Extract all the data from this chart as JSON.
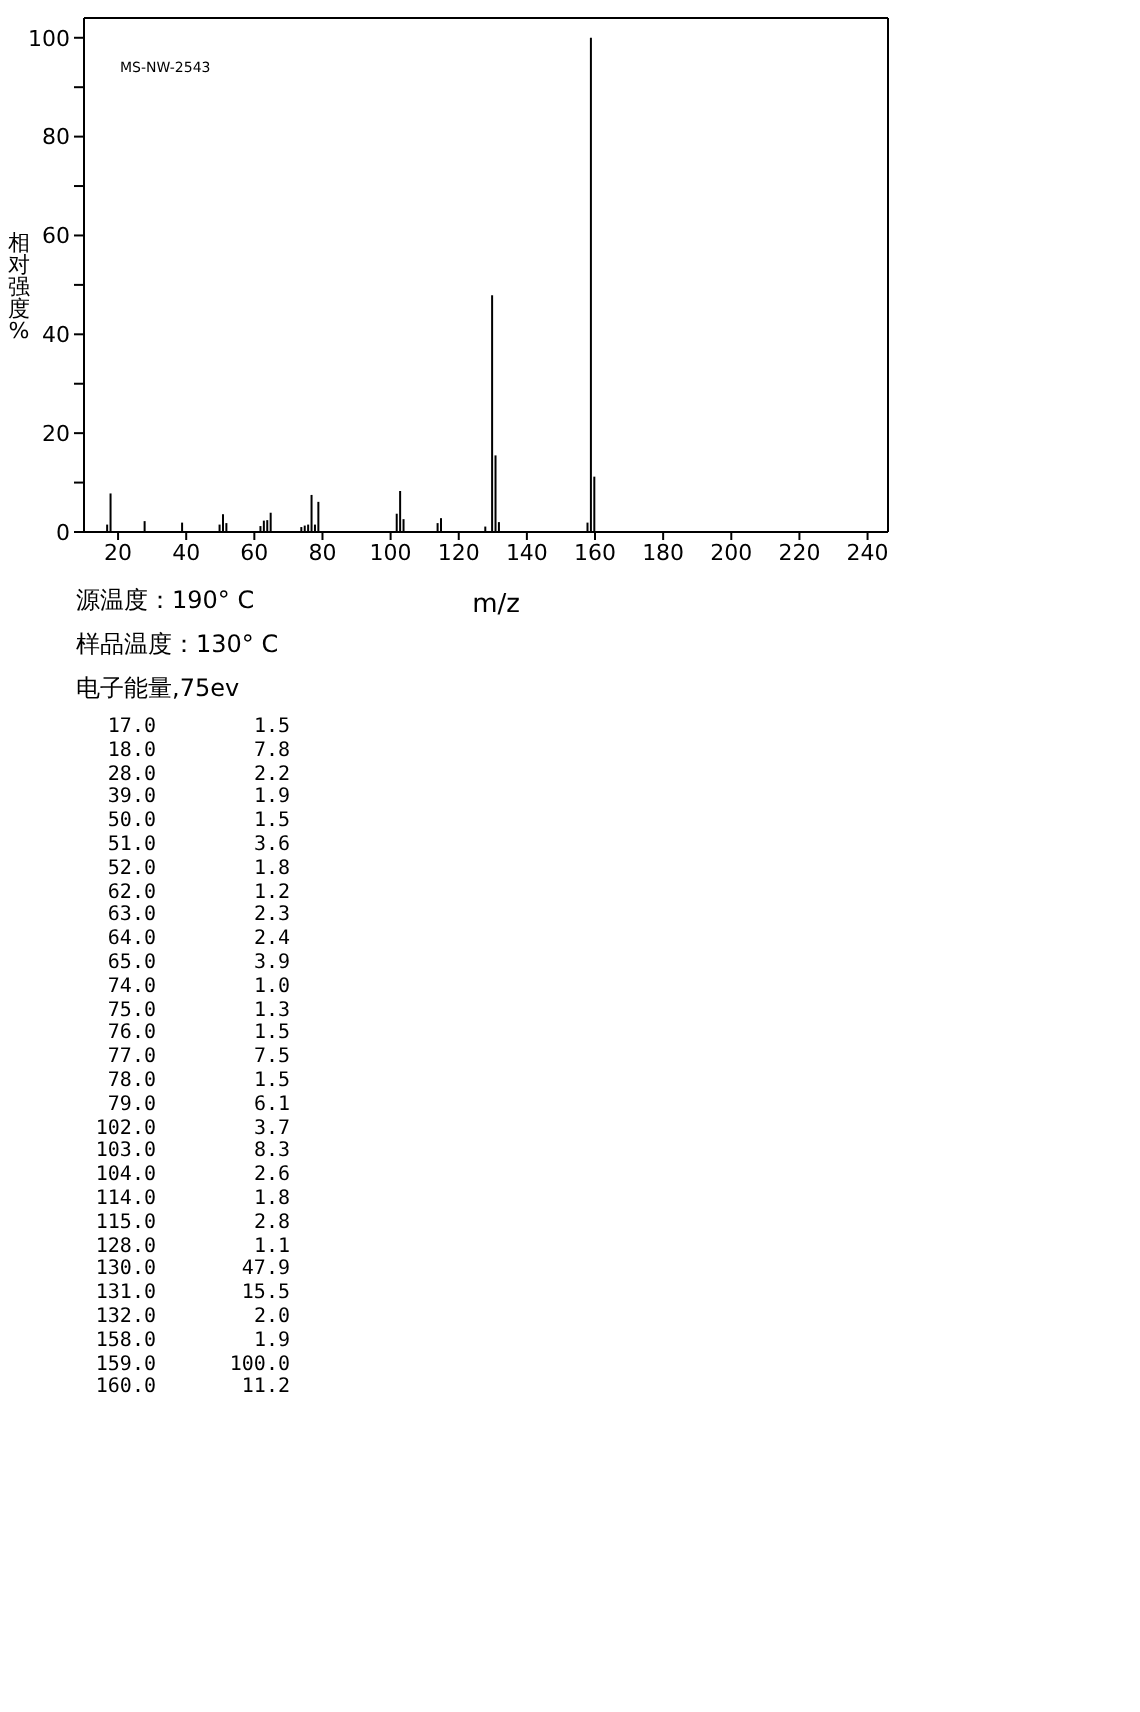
{
  "chart_data": [
    {
      "type": "bar",
      "title": "MS-NW-2543",
      "xlabel": "m/z",
      "ylabel": "相对强度%",
      "x": [
        17,
        18,
        28,
        39,
        50,
        51,
        52,
        62,
        63,
        64,
        65,
        74,
        75,
        76,
        77,
        78,
        79,
        102,
        103,
        104,
        114,
        115,
        128,
        130,
        131,
        132,
        158,
        159,
        160
      ],
      "values": [
        1.5,
        7.8,
        2.2,
        1.9,
        1.5,
        3.6,
        1.8,
        1.2,
        2.3,
        2.4,
        3.9,
        1.0,
        1.3,
        1.5,
        7.5,
        1.5,
        6.1,
        3.7,
        8.3,
        2.6,
        1.8,
        2.8,
        1.1,
        47.9,
        15.5,
        2.0,
        1.9,
        100.0,
        11.2
      ],
      "color": "#000000",
      "xlim": [
        10,
        246
      ],
      "xticks": [
        20,
        40,
        60,
        80,
        100,
        120,
        140,
        160,
        180,
        200,
        220,
        240
      ],
      "ylim": [
        0,
        104
      ],
      "yticks": [
        0,
        {
          "value": 10,
          "label": null
        },
        20,
        {
          "value": 30,
          "label": null
        },
        40,
        {
          "value": 50,
          "label": null
        },
        60,
        {
          "value": 70,
          "label": null
        },
        80,
        {
          "value": 90,
          "label": null
        },
        100
      ],
      "annotations": [
        "源温度：190° C",
        "样品温度：130° C",
        "电子能量,75ev"
      ]
    },
    {
      "type": "other",
      "categories": [
        "17.0",
        "18.0",
        "28.0",
        "39.0",
        "50.0",
        "51.0",
        "52.0",
        "62.0",
        "63.0",
        "64.0",
        "65.0",
        "74.0",
        "75.0",
        "76.0",
        "77.0",
        "78.0",
        "79.0",
        "102.0",
        "103.0",
        "104.0",
        "114.0",
        "115.0",
        "128.0",
        "130.0",
        "131.0",
        "132.0",
        "158.0",
        "159.0",
        "160.0"
      ],
      "value_labels": [
        "1.5",
        "7.8",
        "2.2",
        "1.9",
        "1.5",
        "3.6",
        "1.8",
        "1.2",
        "2.3",
        "2.4",
        "3.9",
        "1.0",
        "1.3",
        "1.5",
        "7.5",
        "1.5",
        "6.1",
        "3.7",
        "8.3",
        "2.6",
        "1.8",
        "2.8",
        "1.1",
        "47.9",
        "15.5",
        "2.0",
        "1.9",
        "100.0",
        "11.2"
      ]
    }
  ]
}
